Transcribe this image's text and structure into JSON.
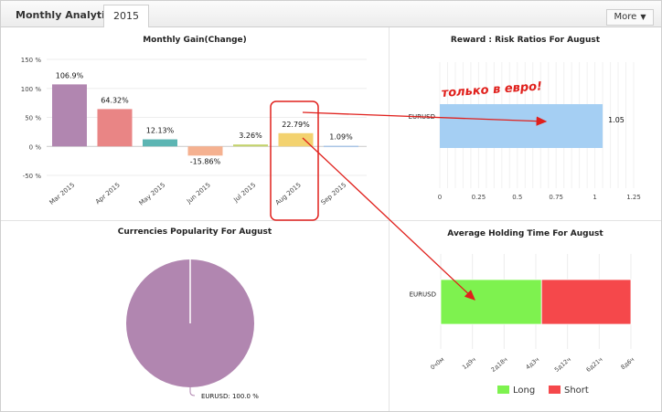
{
  "header": {
    "title": "Monthly Analytics",
    "year_tab": "2015",
    "more_label": "More"
  },
  "gain_chart": {
    "title": "Monthly Gain(Change)",
    "chart_data": {
      "type": "bar",
      "title": "Monthly Gain(Change)",
      "categories": [
        "Mar 2015",
        "Apr 2015",
        "May 2015",
        "Jun 2015",
        "Jul 2015",
        "Aug 2015",
        "Sep 2015"
      ],
      "values": [
        106.9,
        64.32,
        12.13,
        -15.86,
        3.26,
        22.79,
        1.09
      ],
      "labels": [
        "106.9%",
        "64.32%",
        "12.13%",
        "-15.86%",
        "3.26%",
        "22.79%",
        "1.09%"
      ],
      "colors": [
        "#b186b0",
        "#e98585",
        "#5cb5b3",
        "#f5b190",
        "#c3d36b",
        "#f3d26f",
        "#a9c5e6"
      ],
      "yticks": [
        150,
        100,
        50,
        0,
        -50
      ],
      "ytick_labels": [
        "150 %",
        "100 %",
        "50 %",
        "0 %",
        "-50 %"
      ],
      "ylim": [
        -50,
        150
      ]
    }
  },
  "ratio_chart": {
    "title": "Reward : Risk Ratios For August",
    "chart_data": {
      "type": "bar",
      "orientation": "horizontal",
      "categories": [
        "EURUSD"
      ],
      "values": [
        1.05
      ],
      "value_label": "1.05",
      "color": "#a5cff3",
      "xticks": [
        0,
        0.25,
        0.5,
        0.75,
        1,
        1.25
      ],
      "xtick_labels": [
        "0",
        "0.25",
        "0.5",
        "0.75",
        "1",
        "1.25"
      ],
      "xlim": [
        0,
        1.25
      ]
    },
    "annotation": "только в евро!"
  },
  "popularity_chart": {
    "title": "Currencies Popularity For August",
    "chart_data": {
      "type": "pie",
      "labels": [
        "EURUSD"
      ],
      "values": [
        100.0
      ],
      "colors": [
        "#b186b0"
      ],
      "slice_label": "EURUSD: 100.0 %"
    }
  },
  "holding_chart": {
    "title": "Average Holding Time For August",
    "chart_data": {
      "type": "bar",
      "orientation": "horizontal",
      "stacked": true,
      "categories": [
        "EURUSD"
      ],
      "series": [
        {
          "name": "Long",
          "values": [
            0.53
          ],
          "color": "#7ef24f"
        },
        {
          "name": "Short",
          "values": [
            0.47
          ],
          "color": "#f5484b"
        }
      ],
      "xtick_labels": [
        "0ч0м",
        "1д9ч",
        "2д18ч",
        "4д3ч",
        "5д12ч",
        "6д21ч",
        "8д6ч"
      ],
      "legend": "bottom"
    }
  }
}
